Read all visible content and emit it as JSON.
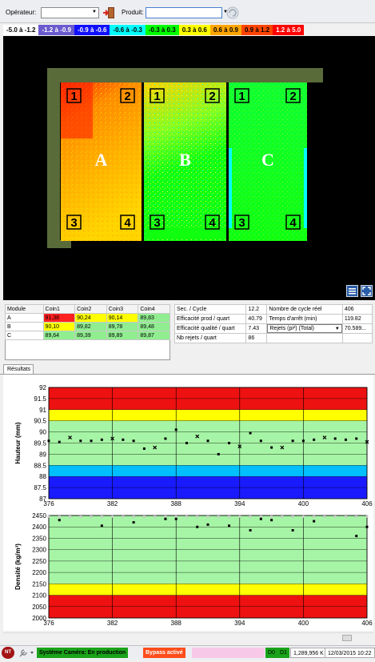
{
  "toolbar": {
    "operator_label": "Opérateur:",
    "operator_value": "",
    "product_label": "Produit:",
    "product_value": ""
  },
  "legend": [
    {
      "label": "-5.0 à -1.2",
      "bg": "#ffffff",
      "fg": "#000000"
    },
    {
      "label": "-1.2 à -0.9",
      "bg": "#6a5acd",
      "fg": "#ffffff"
    },
    {
      "label": "-0.9 à -0.6",
      "bg": "#1010ff",
      "fg": "#ffffff"
    },
    {
      "label": "-0.6 à -0.3",
      "bg": "#00ffff",
      "fg": "#000000"
    },
    {
      "label": "-0.3 à 0.3",
      "bg": "#00ff00",
      "fg": "#000000"
    },
    {
      "label": "0.3 à 0.6",
      "bg": "#ffff00",
      "fg": "#000000"
    },
    {
      "label": "0.6 à 0.9",
      "bg": "#ffa500",
      "fg": "#000000"
    },
    {
      "label": "0.9 à 1.2",
      "bg": "#ff4500",
      "fg": "#000000"
    },
    {
      "label": "1.2 à 5.0",
      "bg": "#ff0000",
      "fg": "#ffffff"
    }
  ],
  "camera": {
    "modules": [
      {
        "letter": "A",
        "corners": [
          "1",
          "2",
          "3",
          "4"
        ]
      },
      {
        "letter": "B",
        "corners": [
          "1",
          "2",
          "3",
          "4"
        ]
      },
      {
        "letter": "C",
        "corners": [
          "1",
          "2",
          "3",
          "4"
        ]
      }
    ]
  },
  "module_table": {
    "headers": [
      "Module",
      "Coin1",
      "Coin2",
      "Coin3",
      "Coin4"
    ],
    "rows": [
      {
        "cells": [
          "A",
          "91,38",
          "90,24",
          "90,14",
          "89,83"
        ],
        "colors": [
          "#ffffff",
          "#ff2020",
          "#ffff00",
          "#ffff00",
          "#90ee90"
        ]
      },
      {
        "cells": [
          "B",
          "90,10",
          "89,82",
          "89,78",
          "89,48"
        ],
        "colors": [
          "#ffffff",
          "#ffff00",
          "#90ee90",
          "#90ee90",
          "#90ee90"
        ]
      },
      {
        "cells": [
          "C",
          "89,64",
          "89,39",
          "89,89",
          "89,87"
        ],
        "colors": [
          "#ffffff",
          "#90ee90",
          "#90ee90",
          "#90ee90",
          "#90ee90"
        ]
      }
    ]
  },
  "stats_table": {
    "rows": [
      [
        "Sec. / Cycle",
        "12.2",
        "Nombre de cycle réel",
        "406"
      ],
      [
        "Efficacité prod / quart",
        "40.79",
        "Temps d'arrêt (min)",
        "119.82"
      ],
      [
        "Efficacité qualité / quart",
        "7.43",
        "Rejets (pi²) (Total)",
        "70.589..."
      ],
      [
        "Nb rejets / quart",
        "86",
        "",
        ""
      ]
    ]
  },
  "tabs": {
    "results": "Résultats"
  },
  "chart_data": [
    {
      "type": "scatter",
      "ylabel": "Hauteur (mm)",
      "xlim": [
        376,
        406
      ],
      "ylim": [
        87,
        92
      ],
      "xticks": [
        376,
        382,
        388,
        394,
        400,
        406
      ],
      "yticks": [
        "87",
        "87.5",
        "88",
        "88.5",
        "89",
        "89.5",
        "90",
        "90.5",
        "91",
        "91.5",
        "92"
      ],
      "bands": [
        {
          "from": 87,
          "to": 88,
          "color": "#1a1aff"
        },
        {
          "from": 88,
          "to": 88.5,
          "color": "#00bfff"
        },
        {
          "from": 88.5,
          "to": 90.5,
          "color": "#a6f5a6"
        },
        {
          "from": 90.5,
          "to": 91,
          "color": "#ffff00"
        },
        {
          "from": 91,
          "to": 92,
          "color": "#ee1111"
        }
      ],
      "points": [
        [
          376,
          89.6
        ],
        [
          377,
          89.55
        ],
        [
          378,
          89.75
        ],
        [
          379,
          89.6
        ],
        [
          380,
          89.6
        ],
        [
          381,
          89.65
        ],
        [
          382,
          89.7
        ],
        [
          383,
          89.65
        ],
        [
          384,
          89.6
        ],
        [
          385,
          89.25
        ],
        [
          386,
          89.3
        ],
        [
          387,
          89.7
        ],
        [
          388,
          90.1
        ],
        [
          389,
          89.5
        ],
        [
          390,
          89.8
        ],
        [
          391,
          89.6
        ],
        [
          392,
          89.0
        ],
        [
          393,
          89.5
        ],
        [
          394,
          89.35
        ],
        [
          395,
          89.95
        ],
        [
          396,
          89.6
        ],
        [
          397,
          89.3
        ],
        [
          398,
          89.3
        ],
        [
          399,
          89.6
        ],
        [
          400,
          89.6
        ],
        [
          401,
          89.65
        ],
        [
          402,
          89.75
        ],
        [
          403,
          89.7
        ],
        [
          404,
          89.65
        ],
        [
          405,
          89.7
        ],
        [
          406,
          89.55
        ]
      ]
    },
    {
      "type": "scatter",
      "ylabel": "Densité (kg/m³)",
      "xlim": [
        376,
        406
      ],
      "ylim": [
        2000,
        2450
      ],
      "xticks": [
        376,
        382,
        388,
        394,
        400,
        406
      ],
      "yticks": [
        "2000",
        "2050",
        "2100",
        "2150",
        "2200",
        "2250",
        "2300",
        "2350",
        "2400",
        "2450"
      ],
      "bands": [
        {
          "from": 2000,
          "to": 2100,
          "color": "#ee1111"
        },
        {
          "from": 2100,
          "to": 2150,
          "color": "#ffff00"
        },
        {
          "from": 2150,
          "to": 2450,
          "color": "#a6f5a6"
        }
      ],
      "points": [
        [
          377,
          2430
        ],
        [
          381,
          2405
        ],
        [
          384,
          2420
        ],
        [
          387,
          2435
        ],
        [
          388,
          2435
        ],
        [
          390,
          2400
        ],
        [
          391,
          2410
        ],
        [
          393,
          2405
        ],
        [
          395,
          2385
        ],
        [
          396,
          2435
        ],
        [
          397,
          2430
        ],
        [
          399,
          2385
        ],
        [
          401,
          2425
        ],
        [
          405,
          2360
        ],
        [
          406,
          2400
        ]
      ],
      "ref_points": [
        [
          376,
          2445
        ],
        [
          377,
          2445
        ],
        [
          378,
          2445
        ],
        [
          379,
          2445
        ],
        [
          380,
          2445
        ],
        [
          381,
          2445
        ],
        [
          382,
          2445
        ],
        [
          383,
          2445
        ],
        [
          384,
          2445
        ],
        [
          385,
          2445
        ],
        [
          386,
          2445
        ],
        [
          387,
          2445
        ],
        [
          388,
          2445
        ],
        [
          389,
          2445
        ],
        [
          390,
          2445
        ],
        [
          391,
          2445
        ],
        [
          392,
          2445
        ],
        [
          393,
          2445
        ],
        [
          394,
          2445
        ],
        [
          395,
          2445
        ],
        [
          396,
          2445
        ],
        [
          397,
          2445
        ],
        [
          398,
          2445
        ],
        [
          399,
          2445
        ],
        [
          400,
          2445
        ],
        [
          401,
          2445
        ],
        [
          402,
          2445
        ],
        [
          403,
          2445
        ],
        [
          404,
          2445
        ],
        [
          405,
          2445
        ],
        [
          406,
          2445
        ]
      ]
    }
  ],
  "status": {
    "logo": "NT",
    "camera_status": "Système Caméra: En production",
    "bypass": "Bypass activé",
    "d0": "D0",
    "d1": "D1",
    "counter": "1,289,956 K",
    "datetime": "12/03/2015 10:22"
  }
}
